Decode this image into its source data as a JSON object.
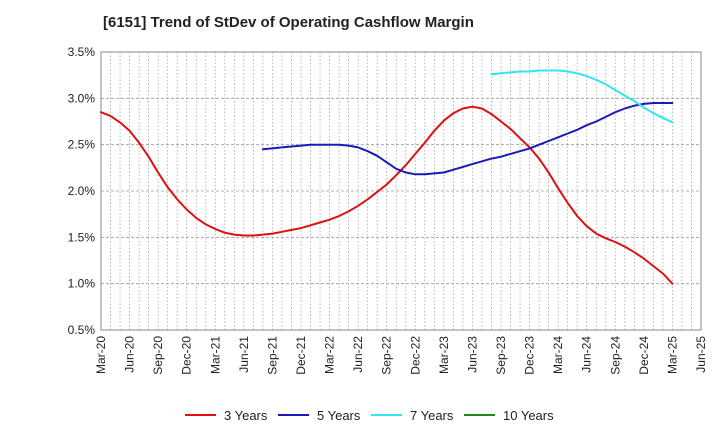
{
  "chart_data": {
    "type": "line",
    "title": "[6151]  Trend of StDev of Operating Cashflow Margin",
    "xlabel": "",
    "ylabel": "",
    "x_ticks": [
      "Mar-20",
      "Jun-20",
      "Sep-20",
      "Dec-20",
      "Mar-21",
      "Jun-21",
      "Sep-21",
      "Dec-21",
      "Mar-22",
      "Jun-22",
      "Sep-22",
      "Dec-22",
      "Mar-23",
      "Jun-23",
      "Sep-23",
      "Dec-23",
      "Mar-24",
      "Jun-24",
      "Sep-24",
      "Dec-24",
      "Mar-25",
      "Jun-25"
    ],
    "y_ticks": [
      "0.5%",
      "1.0%",
      "1.5%",
      "2.0%",
      "2.5%",
      "3.0%",
      "3.5%"
    ],
    "y_tick_values": [
      0.5,
      1.0,
      1.5,
      2.0,
      2.5,
      3.0,
      3.5
    ],
    "ylim": [
      0.5,
      3.5
    ],
    "grid": true,
    "legend_position": "bottom",
    "series": [
      {
        "name": "3 Years",
        "color": "#dd1111",
        "x": [
          "Mar-20",
          "Apr-20",
          "May-20",
          "Jun-20",
          "Jul-20",
          "Aug-20",
          "Sep-20",
          "Oct-20",
          "Nov-20",
          "Dec-20",
          "Jan-21",
          "Feb-21",
          "Mar-21",
          "Apr-21",
          "May-21",
          "Jun-21",
          "Jul-21",
          "Aug-21",
          "Sep-21",
          "Oct-21",
          "Nov-21",
          "Dec-21",
          "Jan-22",
          "Feb-22",
          "Mar-22",
          "Apr-22",
          "May-22",
          "Jun-22",
          "Jul-22",
          "Aug-22",
          "Sep-22",
          "Oct-22",
          "Nov-22",
          "Dec-22",
          "Jan-23",
          "Feb-23",
          "Mar-23",
          "Apr-23",
          "May-23",
          "Jun-23",
          "Jul-23",
          "Aug-23",
          "Sep-23",
          "Oct-23",
          "Nov-23",
          "Dec-23",
          "Jan-24",
          "Feb-24",
          "Mar-24",
          "Apr-24",
          "May-24",
          "Jun-24",
          "Jul-24",
          "Aug-24",
          "Sep-24",
          "Oct-24",
          "Nov-24",
          "Dec-24",
          "Jan-25",
          "Feb-25",
          "Mar-25"
        ],
        "values": [
          2.85,
          2.81,
          2.74,
          2.65,
          2.52,
          2.37,
          2.2,
          2.04,
          1.91,
          1.8,
          1.71,
          1.64,
          1.59,
          1.55,
          1.53,
          1.52,
          1.52,
          1.53,
          1.54,
          1.56,
          1.58,
          1.6,
          1.63,
          1.66,
          1.69,
          1.73,
          1.78,
          1.84,
          1.91,
          1.99,
          2.07,
          2.17,
          2.28,
          2.4,
          2.52,
          2.65,
          2.76,
          2.84,
          2.89,
          2.91,
          2.89,
          2.83,
          2.75,
          2.67,
          2.57,
          2.47,
          2.35,
          2.2,
          2.03,
          1.87,
          1.73,
          1.62,
          1.54,
          1.49,
          1.45,
          1.4,
          1.34,
          1.27,
          1.19,
          1.11,
          1.0
        ]
      },
      {
        "name": "5 Years",
        "color": "#1a1ab8",
        "x": [
          "Aug-21",
          "Sep-21",
          "Oct-21",
          "Nov-21",
          "Dec-21",
          "Jan-22",
          "Feb-22",
          "Mar-22",
          "Apr-22",
          "May-22",
          "Jun-22",
          "Jul-22",
          "Aug-22",
          "Sep-22",
          "Oct-22",
          "Nov-22",
          "Dec-22",
          "Jan-23",
          "Feb-23",
          "Mar-23",
          "Apr-23",
          "May-23",
          "Jun-23",
          "Jul-23",
          "Aug-23",
          "Sep-23",
          "Oct-23",
          "Nov-23",
          "Dec-23",
          "Jan-24",
          "Feb-24",
          "Mar-24",
          "Apr-24",
          "May-24",
          "Jun-24",
          "Jul-24",
          "Aug-24",
          "Sep-24",
          "Oct-24",
          "Nov-24",
          "Dec-24",
          "Jan-25",
          "Feb-25",
          "Mar-25"
        ],
        "values": [
          2.45,
          2.46,
          2.47,
          2.48,
          2.49,
          2.5,
          2.5,
          2.5,
          2.5,
          2.49,
          2.47,
          2.43,
          2.38,
          2.31,
          2.24,
          2.2,
          2.18,
          2.18,
          2.19,
          2.2,
          2.23,
          2.26,
          2.29,
          2.32,
          2.35,
          2.37,
          2.4,
          2.43,
          2.46,
          2.5,
          2.54,
          2.58,
          2.62,
          2.66,
          2.71,
          2.75,
          2.8,
          2.85,
          2.89,
          2.92,
          2.94,
          2.95,
          2.95,
          2.95
        ]
      },
      {
        "name": "7 Years",
        "color": "#33e5f0",
        "x": [
          "Aug-23",
          "Sep-23",
          "Oct-23",
          "Nov-23",
          "Dec-23",
          "Jan-24",
          "Feb-24",
          "Mar-24",
          "Apr-24",
          "May-24",
          "Jun-24",
          "Jul-24",
          "Aug-24",
          "Sep-24",
          "Oct-24",
          "Nov-24",
          "Dec-24",
          "Jan-25",
          "Feb-25",
          "Mar-25"
        ],
        "values": [
          3.26,
          3.27,
          3.28,
          3.29,
          3.29,
          3.3,
          3.3,
          3.3,
          3.29,
          3.27,
          3.24,
          3.2,
          3.15,
          3.09,
          3.03,
          2.97,
          2.9,
          2.84,
          2.79,
          2.74
        ]
      },
      {
        "name": "10 Years",
        "color": "#1e8a1e",
        "x": [],
        "values": []
      }
    ]
  }
}
